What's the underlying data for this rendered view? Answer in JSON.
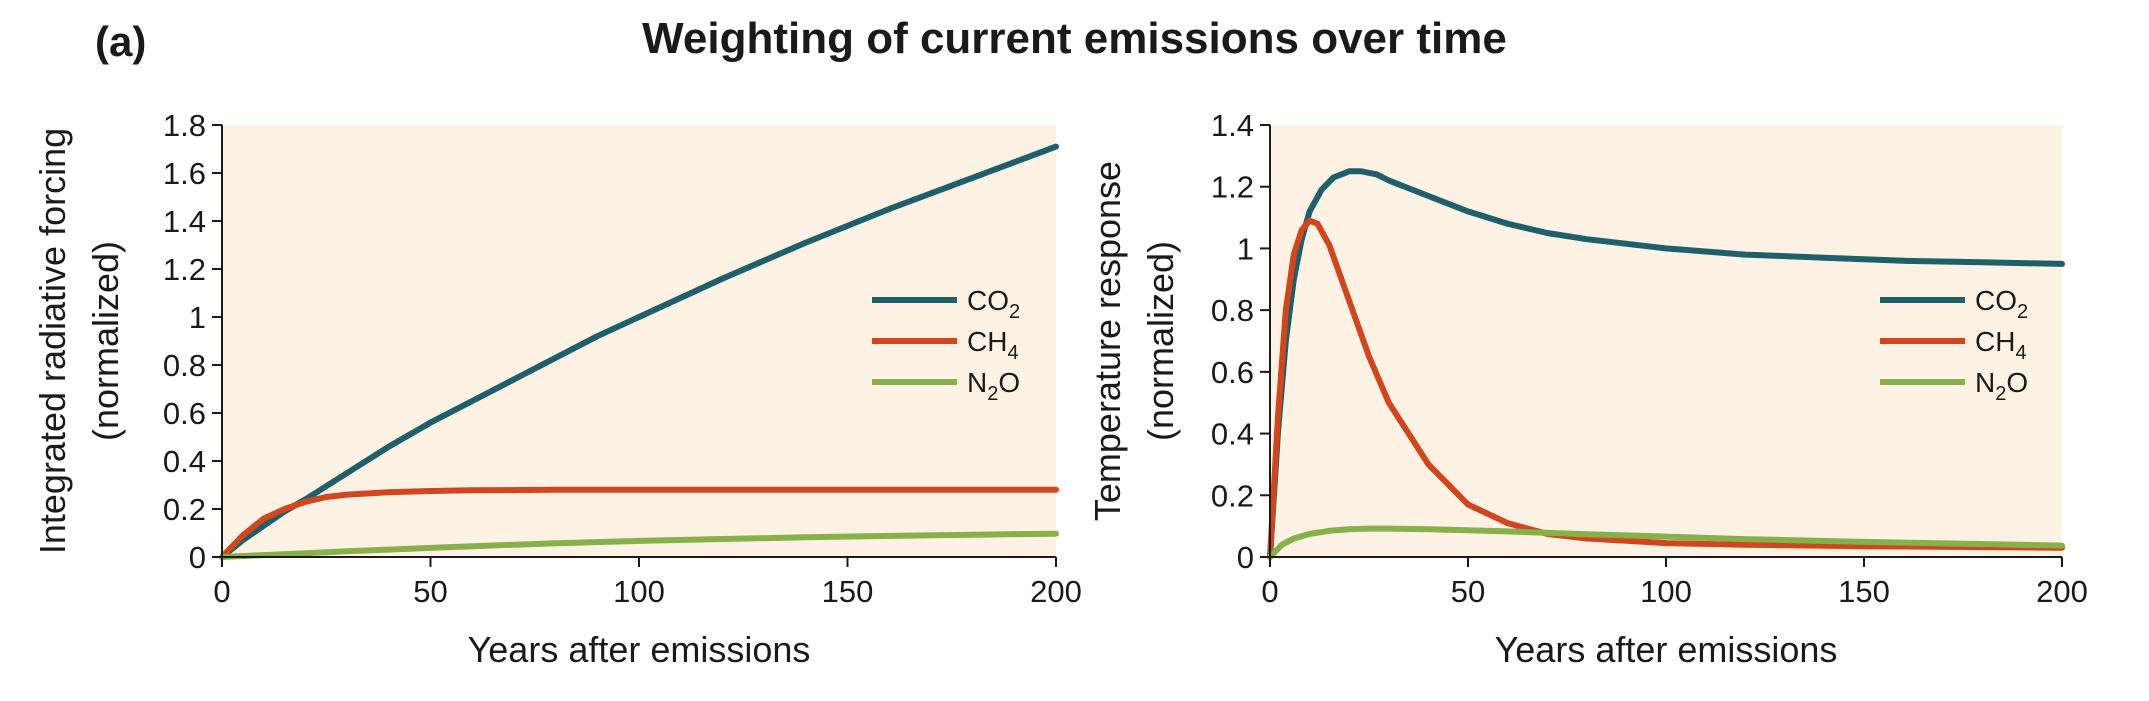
{
  "figure": {
    "panel_label": "(a)",
    "title": "Weighting of current emissions over time"
  },
  "colors": {
    "background_plot": "#fdf2e3",
    "co2": "#1f5f6b",
    "ch4": "#d0461e",
    "n2o": "#86b04a",
    "axis": "#1a1a1a"
  },
  "chart_data": [
    {
      "type": "line",
      "title": "",
      "xlabel": "Years after emissions",
      "ylabel_lines": [
        "Integrated radiative forcing",
        "(normalized)"
      ],
      "xlim": [
        0,
        200
      ],
      "ylim": [
        0,
        1.8
      ],
      "xticks": [
        0,
        50,
        100,
        150,
        200
      ],
      "xtick_labels": [
        "0",
        "50",
        "100",
        "150",
        "200"
      ],
      "yticks": [
        0,
        0.2,
        0.4,
        0.6,
        0.8,
        1,
        1.2,
        1.4,
        1.6,
        1.8
      ],
      "ytick_labels": [
        "0",
        "0.2",
        "0.4",
        "0.6",
        "0.8",
        "1",
        "1.2",
        "1.4",
        "1.6",
        "1.8"
      ],
      "legend_position": "right",
      "series": [
        {
          "name": "CO2",
          "label_main": "CO",
          "label_sub": "2",
          "label_tail": "",
          "color_key": "co2",
          "x": [
            0,
            5,
            10,
            15,
            20,
            30,
            40,
            50,
            60,
            70,
            80,
            90,
            100,
            120,
            140,
            160,
            180,
            200
          ],
          "y": [
            0,
            0.07,
            0.13,
            0.19,
            0.24,
            0.35,
            0.46,
            0.56,
            0.65,
            0.74,
            0.83,
            0.92,
            1.0,
            1.16,
            1.31,
            1.45,
            1.58,
            1.71
          ]
        },
        {
          "name": "CH4",
          "label_main": "CH",
          "label_sub": "4",
          "label_tail": "",
          "color_key": "ch4",
          "x": [
            0,
            5,
            10,
            15,
            20,
            25,
            30,
            40,
            50,
            60,
            80,
            100,
            150,
            200
          ],
          "y": [
            0,
            0.09,
            0.16,
            0.2,
            0.23,
            0.25,
            0.26,
            0.27,
            0.275,
            0.278,
            0.28,
            0.28,
            0.28,
            0.28
          ]
        },
        {
          "name": "N2O",
          "label_main": "N",
          "label_sub": "2",
          "label_tail": "O",
          "color_key": "n2o",
          "x": [
            0,
            10,
            20,
            30,
            40,
            50,
            60,
            80,
            100,
            120,
            140,
            160,
            180,
            200
          ],
          "y": [
            0,
            0.008,
            0.016,
            0.024,
            0.031,
            0.038,
            0.045,
            0.057,
            0.067,
            0.075,
            0.082,
            0.088,
            0.093,
            0.097
          ]
        }
      ]
    },
    {
      "type": "line",
      "title": "",
      "xlabel": "Years after emissions",
      "ylabel_lines": [
        "Temperature response",
        "(normalized)"
      ],
      "xlim": [
        0,
        200
      ],
      "ylim": [
        0,
        1.4
      ],
      "xticks": [
        0,
        50,
        100,
        150,
        200
      ],
      "xtick_labels": [
        "0",
        "50",
        "100",
        "150",
        "200"
      ],
      "yticks": [
        0,
        0.2,
        0.4,
        0.6,
        0.8,
        1,
        1.2,
        1.4
      ],
      "ytick_labels": [
        "0",
        "0.2",
        "0.4",
        "0.6",
        "0.8",
        "1",
        "1.2",
        "1.4"
      ],
      "legend_position": "right",
      "series": [
        {
          "name": "CO2",
          "label_main": "CO",
          "label_sub": "2",
          "label_tail": "",
          "color_key": "co2",
          "x": [
            0,
            2,
            4,
            6,
            8,
            10,
            13,
            16,
            20,
            23,
            27,
            30,
            40,
            50,
            60,
            70,
            80,
            100,
            120,
            140,
            160,
            180,
            200
          ],
          "y": [
            0,
            0.4,
            0.7,
            0.9,
            1.03,
            1.12,
            1.19,
            1.23,
            1.25,
            1.25,
            1.24,
            1.22,
            1.17,
            1.12,
            1.08,
            1.05,
            1.03,
            1.0,
            0.98,
            0.97,
            0.96,
            0.955,
            0.95
          ]
        },
        {
          "name": "CH4",
          "label_main": "CH",
          "label_sub": "4",
          "label_tail": "",
          "color_key": "ch4",
          "x": [
            0,
            2,
            4,
            6,
            8,
            10,
            12,
            15,
            20,
            25,
            30,
            40,
            50,
            60,
            70,
            80,
            100,
            120,
            150,
            200
          ],
          "y": [
            0,
            0.45,
            0.8,
            0.98,
            1.06,
            1.09,
            1.08,
            1.01,
            0.83,
            0.65,
            0.5,
            0.3,
            0.17,
            0.11,
            0.075,
            0.06,
            0.045,
            0.04,
            0.035,
            0.03
          ]
        },
        {
          "name": "N2O",
          "label_main": "N",
          "label_sub": "2",
          "label_tail": "O",
          "color_key": "n2o",
          "x": [
            0,
            3,
            6,
            10,
            15,
            20,
            25,
            30,
            40,
            50,
            60,
            80,
            100,
            120,
            150,
            200
          ],
          "y": [
            0,
            0.04,
            0.06,
            0.075,
            0.085,
            0.09,
            0.092,
            0.092,
            0.09,
            0.087,
            0.083,
            0.074,
            0.066,
            0.058,
            0.049,
            0.037
          ]
        }
      ]
    }
  ]
}
